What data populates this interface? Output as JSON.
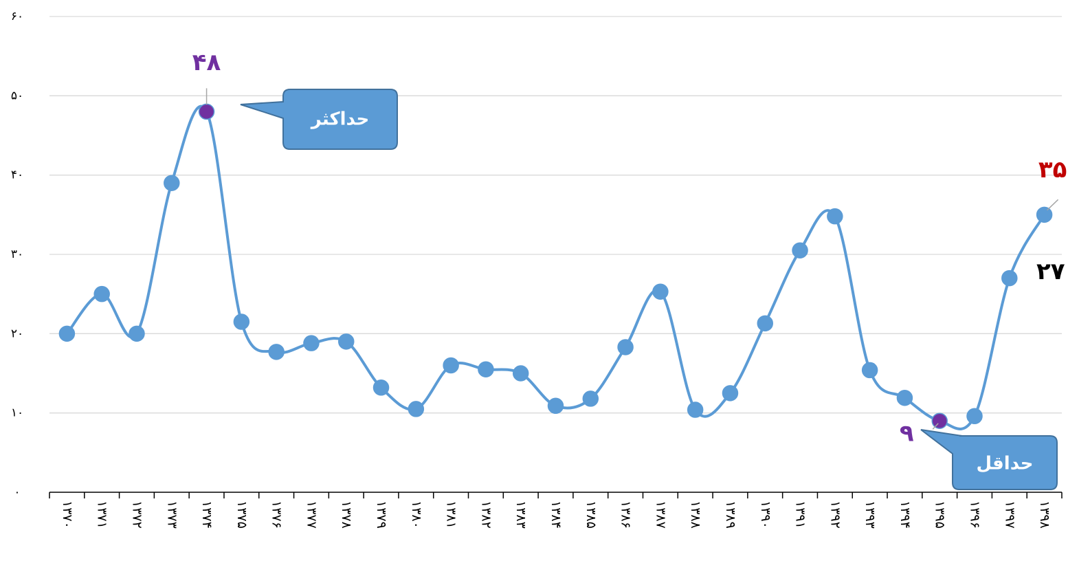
{
  "chart_data": {
    "type": "line",
    "categories": [
      "۱۳۷۰",
      "۱۳۷۱",
      "۱۳۷۲",
      "۱۳۷۳",
      "۱۳۷۴",
      "۱۳۷۵",
      "۱۳۷۶",
      "۱۳۷۷",
      "۱۳۷۸",
      "۱۳۷۹",
      "۱۳۸۰",
      "۱۳۸۱",
      "۱۳۸۲",
      "۱۳۸۳",
      "۱۳۸۴",
      "۱۳۸۵",
      "۱۳۸۶",
      "۱۳۸۷",
      "۱۳۸۸",
      "۱۳۸۹",
      "۱۳۹۰",
      "۱۳۹۱",
      "۱۳۹۲",
      "۱۳۹۳",
      "۱۳۹۴",
      "۱۳۹۵",
      "۱۳۹۶",
      "۱۳۹۷",
      "۱۳۹۸"
    ],
    "values": [
      20,
      25,
      20,
      39,
      48,
      21.5,
      17.7,
      18.8,
      19,
      13.2,
      10.5,
      16,
      15.5,
      15,
      10.9,
      11.8,
      18.3,
      25.3,
      10.4,
      12.5,
      21.3,
      30.5,
      34.8,
      15.4,
      11.9,
      9,
      9.6,
      27,
      35
    ],
    "value_labels": [
      null,
      null,
      null,
      null,
      "۴۸",
      null,
      null,
      null,
      null,
      null,
      null,
      null,
      null,
      null,
      null,
      null,
      null,
      null,
      null,
      null,
      null,
      null,
      null,
      null,
      null,
      "۹",
      null,
      "۲۷",
      "۳۵"
    ],
    "value_label_colors": [
      null,
      null,
      null,
      null,
      "#7030a0",
      null,
      null,
      null,
      null,
      null,
      null,
      null,
      null,
      null,
      null,
      null,
      null,
      null,
      null,
      null,
      null,
      null,
      null,
      null,
      null,
      "#7030a0",
      null,
      "#000000",
      "#c00000"
    ],
    "color": "#5b9bd5",
    "marker_colors": [
      "#5b9bd5",
      "#5b9bd5",
      "#5b9bd5",
      "#5b9bd5",
      "#7030a0",
      "#5b9bd5",
      "#5b9bd5",
      "#5b9bd5",
      "#5b9bd5",
      "#5b9bd5",
      "#5b9bd5",
      "#5b9bd5",
      "#5b9bd5",
      "#5b9bd5",
      "#5b9bd5",
      "#5b9bd5",
      "#5b9bd5",
      "#5b9bd5",
      "#5b9bd5",
      "#5b9bd5",
      "#5b9bd5",
      "#5b9bd5",
      "#5b9bd5",
      "#5b9bd5",
      "#5b9bd5",
      "#7030a0",
      "#5b9bd5",
      "#5b9bd5",
      "#5b9bd5"
    ],
    "ylim": [
      0,
      60
    ],
    "yticks": [
      {
        "value": 0,
        "label": "۰"
      },
      {
        "value": 10,
        "label": "۱۰"
      },
      {
        "value": 20,
        "label": "۲۰"
      },
      {
        "value": 30,
        "label": "۳۰"
      },
      {
        "value": 40,
        "label": "۴۰"
      },
      {
        "value": 50,
        "label": "۵۰"
      },
      {
        "value": 60,
        "label": "۶۰"
      }
    ],
    "grid": true,
    "annotations": [
      "حداکثر",
      "حداقل"
    ]
  }
}
